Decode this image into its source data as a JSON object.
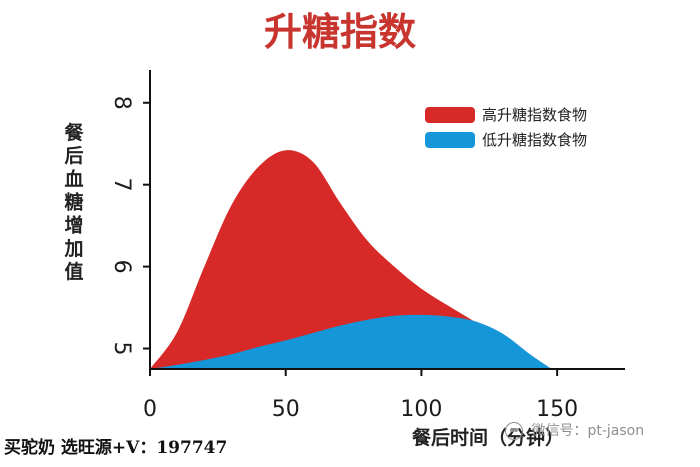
{
  "chart_data": {
    "type": "area",
    "title": "升糖指数",
    "xlabel": "餐后时间（分钟）",
    "ylabel": "餐后血糖增加值",
    "x": [
      0,
      10,
      20,
      30,
      40,
      50,
      60,
      70,
      80,
      90,
      100,
      110,
      120,
      130,
      140,
      148
    ],
    "series": [
      {
        "name": "高升糖指数食物",
        "color": "#d72a28",
        "values": [
          4.75,
          5.2,
          6.0,
          6.75,
          7.22,
          7.42,
          7.28,
          6.78,
          6.32,
          6.0,
          5.73,
          5.52,
          5.32,
          5.12,
          4.9,
          4.75
        ]
      },
      {
        "name": "低升糖指数食物",
        "color": "#1596d8",
        "values": [
          4.75,
          4.8,
          4.86,
          4.93,
          5.02,
          5.1,
          5.19,
          5.28,
          5.35,
          5.4,
          5.41,
          5.39,
          5.33,
          5.18,
          4.93,
          4.75
        ]
      }
    ],
    "x_ticks": [
      "0",
      "50",
      "100",
      "150"
    ],
    "y_ticks": [
      "5",
      "6",
      "7",
      "8"
    ],
    "xlim": [
      0,
      175
    ],
    "ylim": [
      4.75,
      8.4
    ],
    "grid": false,
    "legend_position": "top-right"
  },
  "caption": "买驼奶 选旺源+V：197747",
  "watermark": "微信号：pt-jason",
  "colors": {
    "axis": "#111111",
    "title": "#c8342e",
    "background": "#ffffff"
  }
}
